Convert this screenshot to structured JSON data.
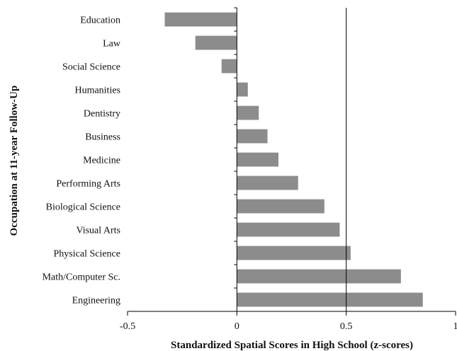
{
  "chart_data": {
    "type": "bar",
    "orientation": "horizontal",
    "categories": [
      "Education",
      "Law",
      "Social Science",
      "Humanities",
      "Dentistry",
      "Business",
      "Medicine",
      "Performing Arts",
      "Biological Science",
      "Visual Arts",
      "Physical Science",
      "Math/Computer Sc.",
      "Engineering"
    ],
    "values": [
      -0.33,
      -0.19,
      -0.07,
      0.05,
      0.1,
      0.14,
      0.19,
      0.28,
      0.4,
      0.47,
      0.52,
      0.75,
      0.85
    ],
    "title": "",
    "xlabel": "Standardized Spatial Scores in High School (z-scores)",
    "ylabel": "Occupation at 11-year Follow-Up",
    "xlim": [
      -0.5,
      1
    ],
    "xticks": [
      -0.5,
      0,
      0.5,
      1
    ],
    "xtick_labels": [
      "-0.5",
      "0",
      "0.5",
      "1"
    ],
    "reference_lines": [
      0,
      0.5
    ],
    "grid": false,
    "legend": "none",
    "bar_color": "#8c8c8c"
  }
}
